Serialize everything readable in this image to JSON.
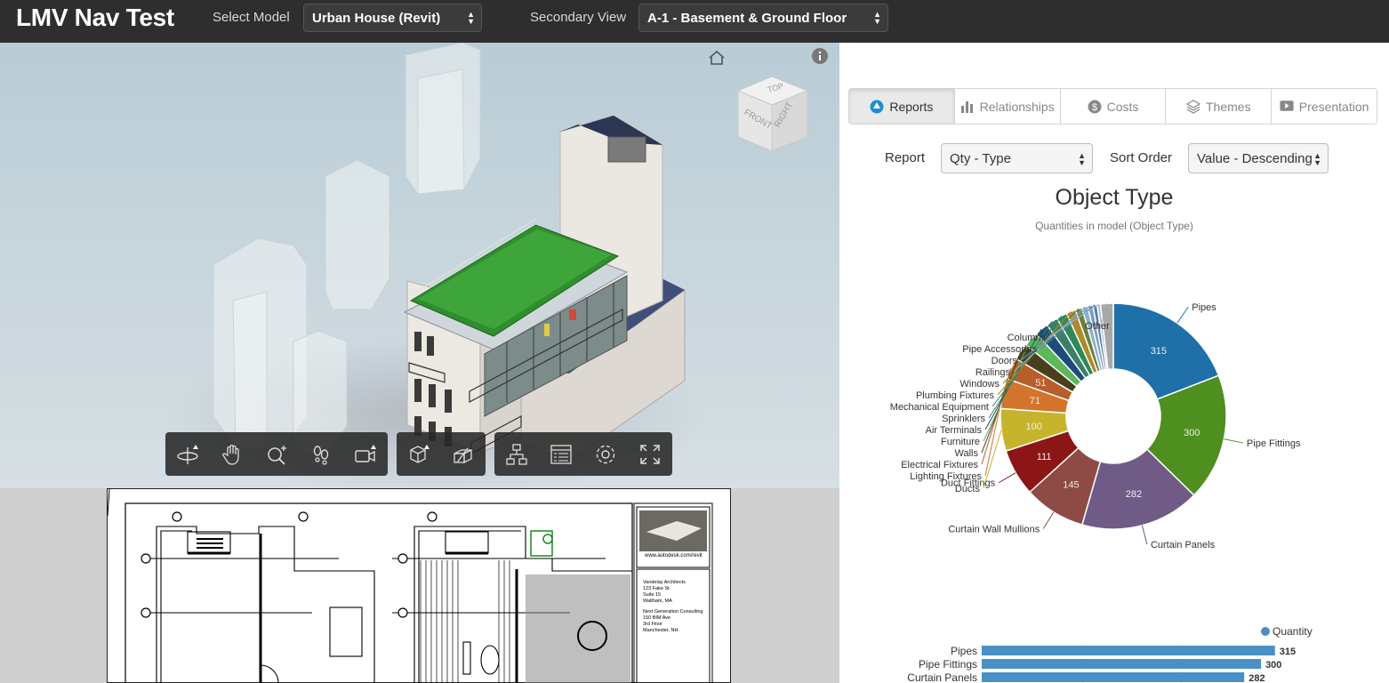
{
  "app": {
    "title": "LMV Nav Test"
  },
  "header": {
    "model_label": "Select Model",
    "model_value": "Urban House (Revit)",
    "secondary_label": "Secondary View",
    "secondary_value": "A-1 - Basement & Ground Floor"
  },
  "viewcube": {
    "top": "TOP",
    "front": "FRONT",
    "right": "RIGHT"
  },
  "viewer_toolbar": [
    "orbit-icon",
    "pan-icon",
    "zoom-icon",
    "first-person-icon",
    "camera-icon",
    "explode-icon",
    "section-icon",
    "model-browser-icon",
    "properties-icon",
    "settings-icon",
    "fullscreen-icon"
  ],
  "sheet": {
    "website": "www.autodesk.com/revit",
    "architect": [
      "Vandelay Architects",
      "123 Fake St",
      "Suite 15",
      "Waltham, MA"
    ],
    "consultant": [
      "Next Generation Consulting",
      "150 BIM Ave",
      "3rd Floor",
      "Manchester, NH"
    ]
  },
  "tabs": [
    {
      "label": "Reports",
      "icon": "reports-icon",
      "active": true
    },
    {
      "label": "Relationships",
      "icon": "bar-chart-icon",
      "active": false
    },
    {
      "label": "Costs",
      "icon": "dollar-icon",
      "active": false
    },
    {
      "label": "Themes",
      "icon": "layers-icon",
      "active": false
    },
    {
      "label": "Presentation",
      "icon": "play-icon",
      "active": false
    }
  ],
  "controls": {
    "report_label": "Report",
    "report_value": "Qty - Type",
    "sort_label": "Sort Order",
    "sort_value": "Value - Descending"
  },
  "chart": {
    "title": "Object Type",
    "subtitle": "Quantities in model (Object Type)"
  },
  "chart_data": [
    {
      "type": "pie",
      "title": "Object Type",
      "subtitle": "Quantities in model (Object Type)",
      "donut": true,
      "categories": [
        "Pipes",
        "Pipe Fittings",
        "Curtain Panels",
        "Curtain Wall Mullions",
        "Duct Fittings",
        "Ducts",
        "Lighting Fixtures",
        "Electrical Fixtures",
        "Walls",
        "Furniture",
        "Air Terminals",
        "Sprinklers",
        "Mechanical Equipment",
        "Plumbing Fixtures",
        "Windows",
        "Railings",
        "Doors",
        "Pipe Accessories",
        "Columns",
        "Other"
      ],
      "values": [
        315,
        300,
        282,
        145,
        111,
        100,
        71,
        51,
        40,
        35,
        32,
        28,
        25,
        22,
        16,
        14,
        12,
        10,
        8,
        30
      ],
      "data_labels": [
        "315",
        "300",
        "282",
        "145",
        "111",
        "100",
        "71",
        "51",
        "",
        "",
        "",
        "",
        "",
        "",
        "",
        "",
        "",
        "",
        "",
        ""
      ],
      "colors": [
        "#1f6fa8",
        "#4e8f1f",
        "#6f5b86",
        "#8e4b45",
        "#8c1616",
        "#c6b52c",
        "#d3742c",
        "#b65f2b",
        "#4a3f1d",
        "#5bb85b",
        "#1f4c78",
        "#3a7f6a",
        "#2d8a57",
        "#b08a2a",
        "#6a7f3a",
        "#8ab2cf",
        "#7a9ebe",
        "#5a7fa0",
        "#a3c1dd",
        "#a8a8a8"
      ]
    },
    {
      "type": "bar",
      "orientation": "horizontal",
      "legend": "top-right",
      "series": [
        {
          "name": "Quantity",
          "values": [
            315,
            300,
            282
          ]
        }
      ],
      "categories": [
        "Pipes",
        "Pipe Fittings",
        "Curtain Panels"
      ],
      "color": "#4a90c4"
    }
  ]
}
